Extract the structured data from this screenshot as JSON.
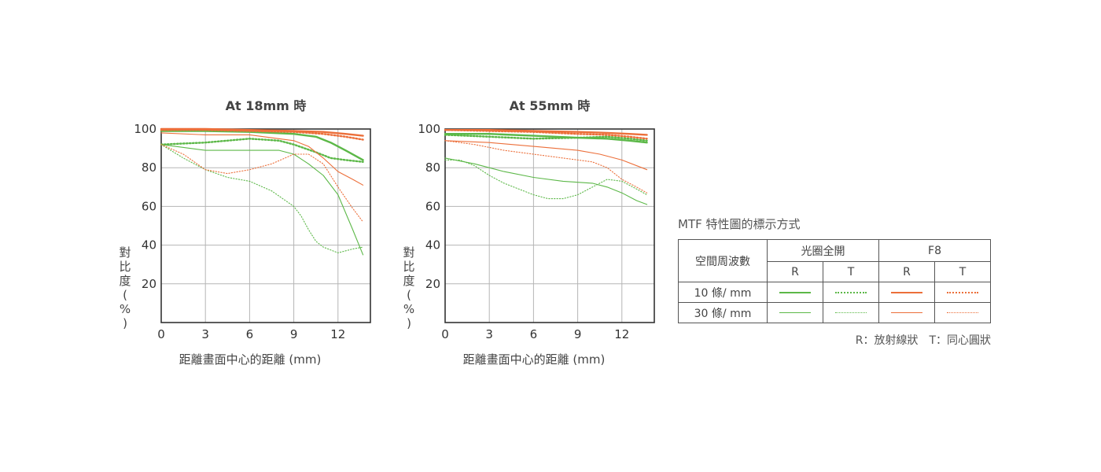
{
  "colors": {
    "green": "#5cb848",
    "orange": "#ec6f3a",
    "axis": "#333333",
    "grid": "#b5b5b5"
  },
  "chart_data": [
    {
      "type": "line",
      "title": "At 18mm 時",
      "xlabel": "距離畫面中心的距離 (mm)",
      "ylabel": "對比度(%)",
      "xlim": [
        0,
        14.2
      ],
      "ylim": [
        0,
        100
      ],
      "xticks": [
        0,
        3,
        6,
        9,
        12
      ],
      "yticks": [
        20,
        40,
        60,
        80,
        100
      ],
      "grid": true,
      "series": [
        {
          "name": "R 10條/mm 光圈全開",
          "color": "green",
          "width": "thick",
          "dash": "solid",
          "x": [
            0,
            3,
            6,
            9,
            10.5,
            11.5,
            12.5,
            13.7
          ],
          "y": [
            99,
            99,
            98.5,
            97.5,
            96,
            93,
            89,
            84
          ]
        },
        {
          "name": "T 10條/mm 光圈全開",
          "color": "green",
          "width": "thick",
          "dash": "dotted",
          "x": [
            0,
            3,
            6,
            8,
            9,
            10.5,
            11.5,
            12.5,
            13.7
          ],
          "y": [
            92,
            93,
            95,
            94,
            92,
            88,
            85,
            84,
            83
          ]
        },
        {
          "name": "R 10條/mm F8",
          "color": "orange",
          "width": "thick",
          "dash": "solid",
          "x": [
            0,
            3,
            6,
            9,
            11,
            12.5,
            13.7
          ],
          "y": [
            100,
            100,
            99.5,
            99,
            98.5,
            97.5,
            96.5
          ]
        },
        {
          "name": "T 10條/mm F8",
          "color": "orange",
          "width": "thick",
          "dash": "dotted",
          "x": [
            0,
            3,
            6,
            9,
            11,
            12.5,
            13.7
          ],
          "y": [
            99.5,
            99.5,
            99,
            98.5,
            97.5,
            96,
            94.5
          ]
        },
        {
          "name": "R 30條/mm 光圈全開",
          "color": "green",
          "width": "thin",
          "dash": "solid",
          "x": [
            0,
            3,
            6,
            8,
            9,
            10,
            11,
            12,
            13,
            13.7
          ],
          "y": [
            92,
            89,
            89,
            89,
            87,
            82,
            76,
            66,
            48,
            35
          ]
        },
        {
          "name": "T 30條/mm 光圈全開",
          "color": "green",
          "width": "thin",
          "dash": "dotted",
          "x": [
            0,
            1.5,
            3,
            4.5,
            6,
            7.5,
            9,
            9.5,
            10,
            10.5,
            11,
            12,
            13,
            13.7
          ],
          "y": [
            92,
            85,
            79,
            75,
            73,
            68,
            60,
            55,
            48,
            42,
            39,
            36,
            38,
            39
          ]
        },
        {
          "name": "R 30條/mm F8",
          "color": "orange",
          "width": "thin",
          "dash": "solid",
          "x": [
            0,
            3,
            6,
            9,
            10,
            11,
            12,
            13,
            13.7
          ],
          "y": [
            98,
            97,
            97,
            94,
            91,
            85,
            78,
            74,
            71
          ]
        },
        {
          "name": "T 30條/mm F8",
          "color": "orange",
          "width": "thin",
          "dash": "dotted",
          "x": [
            0,
            1.5,
            3,
            4.5,
            6,
            7.5,
            9,
            10,
            11,
            12,
            13,
            13.7
          ],
          "y": [
            92,
            87,
            79,
            77,
            79,
            82,
            87,
            87,
            82,
            70,
            59,
            52
          ]
        }
      ]
    },
    {
      "type": "line",
      "title": "At 55mm 時",
      "xlabel": "距離畫面中心的距離 (mm)",
      "ylabel": "對比度(%)",
      "xlim": [
        0,
        14.2
      ],
      "ylim": [
        0,
        100
      ],
      "xticks": [
        0,
        3,
        6,
        9,
        12
      ],
      "yticks": [
        20,
        40,
        60,
        80,
        100
      ],
      "grid": true,
      "series": [
        {
          "name": "R 10條/mm 光圈全開",
          "color": "green",
          "width": "thick",
          "dash": "solid",
          "x": [
            0,
            3,
            6,
            9,
            11,
            12.5,
            13.7
          ],
          "y": [
            97.5,
            97.5,
            96.5,
            95.5,
            95,
            94,
            93
          ]
        },
        {
          "name": "T 10條/mm 光圈全開",
          "color": "green",
          "width": "thick",
          "dash": "dotted",
          "x": [
            0,
            3,
            6,
            9,
            11,
            12.5,
            13.7
          ],
          "y": [
            97,
            96,
            95,
            95.5,
            96,
            95,
            94
          ]
        },
        {
          "name": "R 10條/mm F8",
          "color": "orange",
          "width": "thick",
          "dash": "solid",
          "x": [
            0,
            3,
            6,
            9,
            11,
            12.5,
            13.7
          ],
          "y": [
            99.5,
            99.5,
            99,
            98.5,
            98,
            97.5,
            97
          ]
        },
        {
          "name": "T 10條/mm F8",
          "color": "orange",
          "width": "thick",
          "dash": "dotted",
          "x": [
            0,
            3,
            6,
            9,
            11,
            12.5,
            13.7
          ],
          "y": [
            99.5,
            99,
            98.5,
            97.5,
            97,
            96,
            95
          ]
        },
        {
          "name": "R 30條/mm 光圈全開",
          "color": "green",
          "width": "thin",
          "dash": "solid",
          "x": [
            0,
            2,
            4,
            6,
            8,
            10,
            11,
            12,
            13,
            13.7
          ],
          "y": [
            85,
            82,
            78,
            75,
            73,
            72,
            70,
            67,
            63,
            61
          ]
        },
        {
          "name": "T 30條/mm 光圈全開",
          "color": "green",
          "width": "thin",
          "dash": "dotted",
          "x": [
            0,
            1,
            2,
            3,
            4,
            5,
            6,
            7,
            8,
            9,
            10,
            11,
            12,
            13,
            13.7
          ],
          "y": [
            84,
            84,
            81,
            76,
            72,
            69,
            66,
            64,
            64,
            66,
            70,
            74,
            73,
            69,
            66
          ]
        },
        {
          "name": "R 30條/mm F8",
          "color": "orange",
          "width": "thin",
          "dash": "solid",
          "x": [
            0,
            3,
            6,
            9,
            10.5,
            12,
            13.7
          ],
          "y": [
            94,
            93,
            91,
            89,
            87,
            84,
            79
          ]
        },
        {
          "name": "T 30條/mm F8",
          "color": "orange",
          "width": "thin",
          "dash": "dotted",
          "x": [
            0,
            2,
            4,
            6,
            8,
            10,
            11,
            12,
            13,
            13.7
          ],
          "y": [
            94,
            92,
            89,
            87,
            85,
            83,
            80,
            74,
            70,
            67
          ]
        }
      ]
    }
  ],
  "legend": {
    "title": "MTF 特性圖的標示方式",
    "spatial_header": "空間周波數",
    "group_open": "光圈全開",
    "group_f8": "F8",
    "col_r": "R",
    "col_t": "T",
    "row_10": "10 條/ mm",
    "row_30": "30 條/ mm",
    "note": "R：放射線狀　T：同心圓狀"
  }
}
